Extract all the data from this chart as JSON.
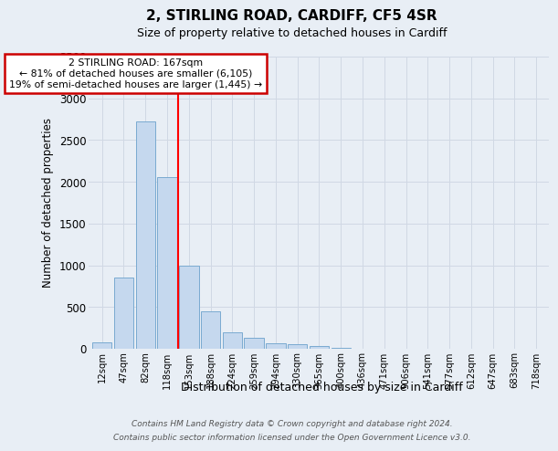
{
  "title1": "2, STIRLING ROAD, CARDIFF, CF5 4SR",
  "title2": "Size of property relative to detached houses in Cardiff",
  "xlabel": "Distribution of detached houses by size in Cardiff",
  "ylabel": "Number of detached properties",
  "bar_labels": [
    "12sqm",
    "47sqm",
    "82sqm",
    "118sqm",
    "153sqm",
    "188sqm",
    "224sqm",
    "259sqm",
    "294sqm",
    "330sqm",
    "365sqm",
    "400sqm",
    "436sqm",
    "471sqm",
    "506sqm",
    "541sqm",
    "577sqm",
    "612sqm",
    "647sqm",
    "683sqm",
    "718sqm"
  ],
  "bar_values": [
    75,
    850,
    2720,
    2060,
    1000,
    450,
    200,
    130,
    70,
    60,
    30,
    10,
    5,
    3,
    2,
    1,
    1,
    0,
    0,
    0,
    0
  ],
  "bar_color": "#c5d8ee",
  "bar_edge_color": "#7aaad0",
  "annotation_title": "2 STIRLING ROAD: 167sqm",
  "annotation_line1": "← 81% of detached houses are smaller (6,105)",
  "annotation_line2": "19% of semi-detached houses are larger (1,445) →",
  "red_line_x": 3.5,
  "ylim": [
    0,
    3500
  ],
  "yticks": [
    0,
    500,
    1000,
    1500,
    2000,
    2500,
    3000,
    3500
  ],
  "grid_color": "#d0d8e4",
  "background_color": "#e8eef5",
  "footer1": "Contains HM Land Registry data © Crown copyright and database right 2024.",
  "footer2": "Contains public sector information licensed under the Open Government Licence v3.0."
}
